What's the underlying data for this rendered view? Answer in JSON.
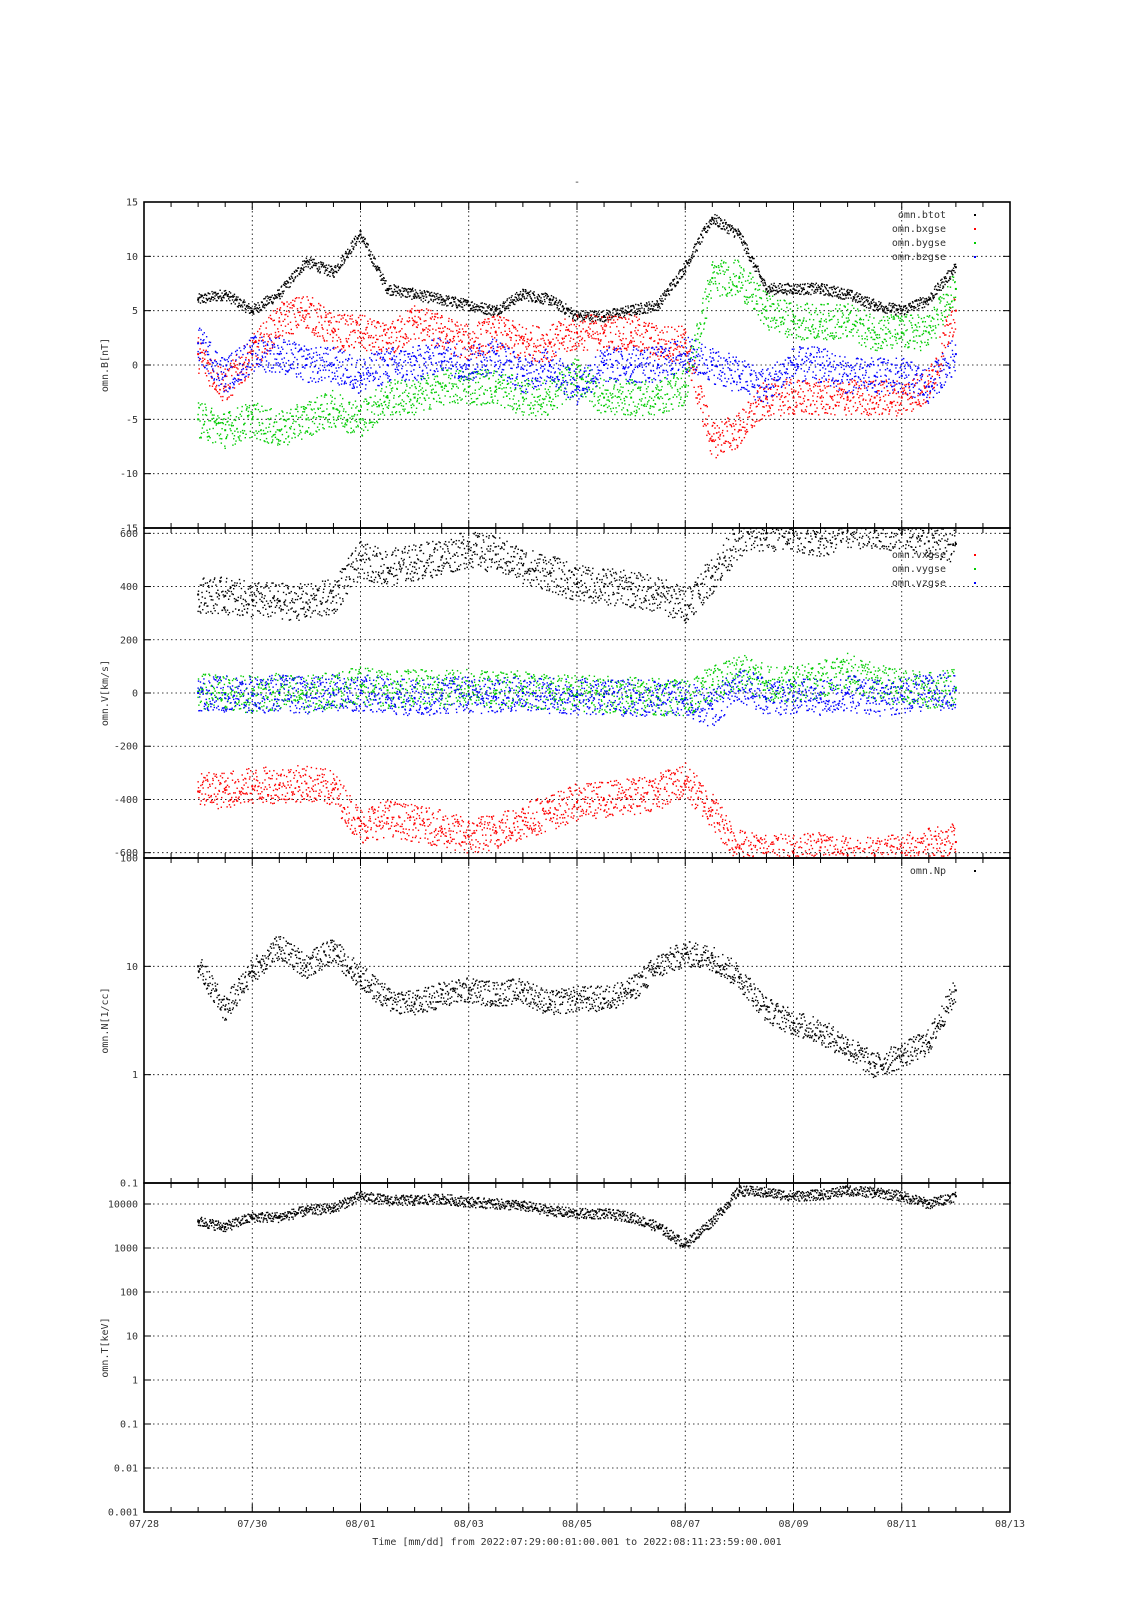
{
  "figure": {
    "title": "-",
    "time_axis_label": "Time [mm/dd]  from 2022:07:29:00:01:00.001  to  2022:08:11:23:59:00.001",
    "x_ticks": [
      "07/28",
      "07/30",
      "08/01",
      "08/03",
      "08/05",
      "08/07",
      "08/09",
      "08/11",
      "08/13"
    ],
    "x_range_days": [
      "07/28",
      "08/13"
    ]
  },
  "chart_data": [
    {
      "type": "scatter",
      "ylabel": "omn.B[nT]",
      "ylim": [
        -15,
        15
      ],
      "y_scale": "linear",
      "grid": true,
      "legend_position": "top-right",
      "y_ticks": [
        "15",
        "10",
        "5",
        "0",
        "-5",
        "-10",
        "-15"
      ],
      "y_tick_values": [
        15,
        10,
        5,
        0,
        -5,
        -10,
        -15
      ],
      "x": [
        "07/29",
        "07/29 12:00",
        "07/30",
        "07/30 12:00",
        "07/31",
        "07/31 12:00",
        "08/01",
        "08/01 12:00",
        "08/02",
        "08/02 12:00",
        "08/03",
        "08/03 12:00",
        "08/04",
        "08/04 12:00",
        "08/05",
        "08/05 12:00",
        "08/06",
        "08/06 12:00",
        "08/07",
        "08/07 12:00",
        "08/08",
        "08/08 12:00",
        "08/09",
        "08/09 12:00",
        "08/10",
        "08/10 12:00",
        "08/11",
        "08/11 12:00",
        "08/12"
      ],
      "series": [
        {
          "name": "omn.btot",
          "color": "#000000",
          "values": [
            6,
            6.5,
            5,
            6.5,
            9.5,
            8.5,
            12,
            7,
            6.5,
            6,
            5.5,
            5,
            6.5,
            6,
            4.5,
            4.5,
            5,
            5.5,
            9,
            13.5,
            12,
            7,
            7,
            7,
            6.5,
            5.5,
            5,
            6,
            9
          ]
        },
        {
          "name": "omn.bxgse",
          "color": "#ff0000",
          "values": [
            1,
            -2,
            1,
            4,
            5,
            3,
            3,
            2,
            4,
            3,
            2,
            3,
            2,
            2,
            3,
            3,
            3,
            2,
            2,
            -7,
            -6,
            -3,
            -3,
            -3,
            -3,
            -3,
            -3,
            -2,
            5
          ]
        },
        {
          "name": "omn.bygse",
          "color": "#00cc00",
          "values": [
            -5,
            -6,
            -5,
            -6,
            -5,
            -4,
            -5,
            -3,
            -3,
            -2,
            -2,
            -2,
            -3,
            -3,
            -1,
            -3,
            -3,
            -3,
            -2,
            8,
            8,
            5,
            4,
            4,
            4,
            3,
            3,
            3,
            7
          ]
        },
        {
          "name": "omn.bzgse",
          "color": "#0000ff",
          "values": [
            2,
            -1,
            1,
            1,
            0,
            0,
            -1,
            0,
            0,
            1,
            0,
            1,
            -1,
            0,
            -2,
            0,
            0,
            0,
            1,
            0,
            -1,
            -2,
            0,
            0,
            -1,
            -1,
            -1,
            -2,
            1
          ]
        }
      ]
    },
    {
      "type": "scatter",
      "ylabel": "omn.V[km/s]",
      "ylim": [
        -620,
        620
      ],
      "y_scale": "linear",
      "grid": true,
      "legend_position": "top-right",
      "y_ticks": [
        "600",
        "400",
        "200",
        "0",
        "-200",
        "-400",
        "-600"
      ],
      "y_tick_values": [
        600,
        400,
        200,
        0,
        -200,
        -400,
        -600
      ],
      "x": [
        "07/29",
        "07/29 12:00",
        "07/30",
        "07/30 12:00",
        "07/31",
        "07/31 12:00",
        "08/01",
        "08/01 12:00",
        "08/02",
        "08/02 12:00",
        "08/03",
        "08/03 12:00",
        "08/04",
        "08/04 12:00",
        "08/05",
        "08/05 12:00",
        "08/06",
        "08/06 12:00",
        "08/07",
        "08/07 12:00",
        "08/08",
        "08/08 12:00",
        "08/09",
        "08/09 12:00",
        "08/10",
        "08/10 12:00",
        "08/11",
        "08/11 12:00",
        "08/12"
      ],
      "series": [
        {
          "name": "",
          "color": "#000000",
          "values": [
            370,
            365,
            350,
            345,
            340,
            360,
            500,
            470,
            490,
            510,
            540,
            520,
            480,
            450,
            410,
            400,
            390,
            370,
            330,
            440,
            580,
            600,
            600,
            580,
            610,
            610,
            600,
            570,
            560
          ]
        },
        {
          "name": "omn.vxgse",
          "color": "#ff0000",
          "values": [
            -370,
            -365,
            -350,
            -345,
            -340,
            -360,
            -500,
            -470,
            -490,
            -510,
            -540,
            -520,
            -480,
            -450,
            -410,
            -400,
            -390,
            -370,
            -330,
            -440,
            -580,
            -600,
            -600,
            -580,
            -610,
            -610,
            -600,
            -570,
            -560
          ]
        },
        {
          "name": "omn.vygse",
          "color": "#00cc00",
          "values": [
            5,
            0,
            -5,
            5,
            -5,
            10,
            30,
            10,
            20,
            15,
            20,
            10,
            15,
            5,
            0,
            -5,
            -10,
            -15,
            -20,
            30,
            80,
            40,
            30,
            50,
            80,
            40,
            20,
            10,
            20
          ]
        },
        {
          "name": "omn.vzgse",
          "color": "#0000ff",
          "values": [
            0,
            -5,
            -10,
            0,
            -10,
            0,
            0,
            -10,
            -20,
            -10,
            -5,
            -15,
            0,
            -10,
            -15,
            -15,
            -20,
            -20,
            -25,
            -60,
            40,
            -20,
            -10,
            -20,
            0,
            -20,
            -10,
            0,
            10
          ]
        }
      ]
    },
    {
      "type": "scatter",
      "ylabel": "omn.N[1/cc]",
      "ylim": [
        0.1,
        100
      ],
      "y_scale": "log",
      "grid": true,
      "legend_position": "top-right",
      "y_ticks": [
        "100",
        "10",
        "1",
        "0.1"
      ],
      "y_tick_values": [
        100,
        10,
        1,
        0.1
      ],
      "x": [
        "07/29",
        "07/29 12:00",
        "07/30",
        "07/30 12:00",
        "07/31",
        "07/31 12:00",
        "08/01",
        "08/01 12:00",
        "08/02",
        "08/02 12:00",
        "08/03",
        "08/03 12:00",
        "08/04",
        "08/04 12:00",
        "08/05",
        "08/05 12:00",
        "08/06",
        "08/06 12:00",
        "08/07",
        "08/07 12:00",
        "08/08",
        "08/08 12:00",
        "08/09",
        "08/09 12:00",
        "08/10",
        "08/10 12:00",
        "08/11",
        "08/11 12:00",
        "08/12"
      ],
      "series": [
        {
          "name": "omn.Np",
          "color": "#000000",
          "values": [
            10,
            4,
            9,
            15,
            10,
            14,
            8,
            5,
            4.5,
            5.5,
            6,
            5.5,
            6,
            4.5,
            5,
            5,
            6,
            10,
            13,
            12,
            8,
            4,
            3,
            2.5,
            1.8,
            1.2,
            1.5,
            2,
            6
          ]
        }
      ]
    },
    {
      "type": "scatter",
      "ylabel": "omn.T[keV]",
      "ylim": [
        0.001,
        30000
      ],
      "y_scale": "log",
      "grid": true,
      "legend_position": "top-right",
      "y_ticks": [
        "10000",
        "1000",
        "100",
        "10",
        "1",
        "0.1",
        "0.01",
        "0.001"
      ],
      "y_tick_values": [
        10000,
        1000,
        100,
        10,
        1,
        0.1,
        0.01,
        0.001
      ],
      "x": [
        "07/29",
        "07/29 12:00",
        "07/30",
        "07/30 12:00",
        "07/31",
        "07/31 12:00",
        "08/01",
        "08/01 12:00",
        "08/02",
        "08/02 12:00",
        "08/03",
        "08/03 12:00",
        "08/04",
        "08/04 12:00",
        "08/05",
        "08/05 12:00",
        "08/06",
        "08/06 12:00",
        "08/07",
        "08/07 12:00",
        "08/08",
        "08/08 12:00",
        "08/09",
        "08/09 12:00",
        "08/10",
        "08/10 12:00",
        "08/11",
        "08/11 12:00",
        "08/12"
      ],
      "series": [
        {
          "name": "",
          "color": "#000000",
          "values": [
            4000,
            3000,
            5000,
            5000,
            7000,
            8000,
            15000,
            12000,
            12000,
            13000,
            11000,
            10000,
            9000,
            7000,
            6000,
            6000,
            5000,
            3000,
            1200,
            4000,
            20000,
            18000,
            15000,
            16000,
            20000,
            18000,
            15000,
            10000,
            15000
          ]
        }
      ]
    }
  ]
}
